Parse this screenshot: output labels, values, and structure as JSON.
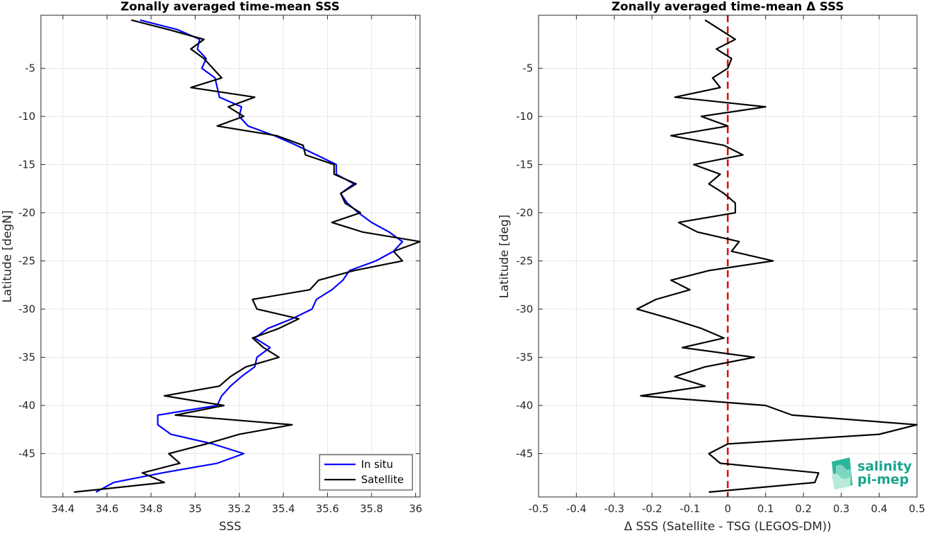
{
  "chart_data": [
    {
      "type": "line",
      "title": "Zonally averaged time-mean SSS",
      "xlabel": "SSS",
      "ylabel": "Latitude [degN]",
      "xlim": [
        34.3,
        36.02
      ],
      "ylim": [
        -49.5,
        0.5
      ],
      "xticks": [
        34.4,
        34.6,
        34.8,
        35,
        35.2,
        35.4,
        35.6,
        35.8,
        36
      ],
      "xtick_labels": [
        "34.4",
        "34.6",
        "34.8",
        "35",
        "35.2",
        "35.4",
        "35.6",
        "35.8",
        "36"
      ],
      "yticks": [
        -5,
        -10,
        -15,
        -20,
        -25,
        -30,
        -35,
        -40,
        -45
      ],
      "ytick_labels": [
        "-5",
        "-10",
        "-15",
        "-20",
        "-25",
        "-30",
        "-35",
        "-40",
        "-45"
      ],
      "grid": true,
      "legend_position": "bottom-right",
      "series": [
        {
          "name": "In situ",
          "color": "#0000ff",
          "lat": [
            0,
            -1,
            -2,
            -3,
            -4,
            -5,
            -6,
            -7,
            -8,
            -9,
            -10,
            -11,
            -12,
            -13,
            -14,
            -15,
            -16,
            -17,
            -18,
            -19,
            -20,
            -21,
            -22,
            -23,
            -24,
            -25,
            -26,
            -27,
            -28,
            -29,
            -30,
            -31,
            -32,
            -33,
            -34,
            -35,
            -36,
            -37,
            -38,
            -39,
            -40,
            -41,
            -42,
            -43,
            -44,
            -45,
            -46,
            -47,
            -48,
            -49
          ],
          "values": [
            34.75,
            34.92,
            35.02,
            35.01,
            35.05,
            35.03,
            35.09,
            35.1,
            35.11,
            35.21,
            35.2,
            35.24,
            35.36,
            35.46,
            35.55,
            35.64,
            35.64,
            35.72,
            35.66,
            35.69,
            35.74,
            35.8,
            35.88,
            35.94,
            35.9,
            35.82,
            35.7,
            35.67,
            35.62,
            35.55,
            35.53,
            35.44,
            35.33,
            35.27,
            35.34,
            35.28,
            35.27,
            35.21,
            35.16,
            35.12,
            35.1,
            34.83,
            34.83,
            34.89,
            35.08,
            35.22,
            35.1,
            34.85,
            34.63,
            34.55
          ]
        },
        {
          "name": "Satellite",
          "color": "#000000",
          "lat": [
            0,
            -1,
            -2,
            -3,
            -4,
            -5,
            -6,
            -7,
            -8,
            -9,
            -10,
            -11,
            -12,
            -13,
            -14,
            -15,
            -16,
            -17,
            -18,
            -19,
            -20,
            -21,
            -22,
            -23,
            -24,
            -25,
            -26,
            -27,
            -28,
            -29,
            -30,
            -31,
            -32,
            -33,
            -34,
            -35,
            -36,
            -37,
            -38,
            -39,
            -40,
            -41,
            -42,
            -43,
            -44,
            -45,
            -46,
            -47,
            -48,
            -49
          ],
          "values": [
            34.71,
            34.88,
            35.04,
            34.98,
            35.04,
            35.08,
            35.12,
            34.98,
            35.27,
            35.15,
            35.22,
            35.1,
            35.37,
            35.49,
            35.5,
            35.63,
            35.63,
            35.73,
            35.66,
            35.68,
            35.75,
            35.62,
            35.76,
            36.02,
            35.9,
            35.94,
            35.72,
            35.56,
            35.52,
            35.26,
            35.28,
            35.47,
            35.38,
            35.26,
            35.31,
            35.38,
            35.23,
            35.16,
            35.11,
            34.86,
            35.13,
            34.91,
            35.44,
            35.2,
            35.05,
            34.88,
            34.93,
            34.76,
            34.86,
            34.45
          ]
        }
      ]
    },
    {
      "type": "line",
      "title": "Zonally averaged time-mean Δ SSS",
      "xlabel": "Δ SSS (Satellite - TSG (LEGOS-DM))",
      "ylabel": "Latitude [deg]",
      "xlim": [
        -0.5,
        0.5
      ],
      "ylim": [
        -49.5,
        0.5
      ],
      "xticks": [
        -0.5,
        -0.4,
        -0.3,
        -0.2,
        -0.1,
        0,
        0.1,
        0.2,
        0.3,
        0.4,
        0.5
      ],
      "xtick_labels": [
        "-0.5",
        "-0.4",
        "-0.3",
        "-0.2",
        "-0.1",
        "0",
        "0.1",
        "0.2",
        "0.3",
        "0.4",
        "0.5"
      ],
      "yticks": [
        -5,
        -10,
        -15,
        -20,
        -25,
        -30,
        -35,
        -40,
        -45
      ],
      "ytick_labels": [
        "-5",
        "-10",
        "-15",
        "-20",
        "-25",
        "-30",
        "-35",
        "-40",
        "-45"
      ],
      "grid": true,
      "zero_line_color": "#e00000",
      "series": [
        {
          "name": "",
          "color": "#000000",
          "lat": [
            0,
            -1,
            -2,
            -3,
            -4,
            -5,
            -6,
            -7,
            -8,
            -9,
            -10,
            -11,
            -12,
            -13,
            -14,
            -15,
            -16,
            -17,
            -18,
            -19,
            -20,
            -21,
            -22,
            -23,
            -24,
            -25,
            -26,
            -27,
            -28,
            -29,
            -30,
            -31,
            -32,
            -33,
            -34,
            -35,
            -36,
            -37,
            -38,
            -39,
            -40,
            -41,
            -42,
            -43,
            -44,
            -45,
            -46,
            -47,
            -48,
            -49
          ],
          "values": [
            -0.06,
            -0.02,
            0.02,
            -0.03,
            0.01,
            0.0,
            -0.04,
            -0.02,
            -0.14,
            0.1,
            -0.07,
            0.0,
            -0.15,
            -0.01,
            0.04,
            -0.09,
            -0.02,
            -0.05,
            -0.01,
            0.02,
            0.02,
            -0.13,
            -0.08,
            0.03,
            0.01,
            0.12,
            -0.05,
            -0.15,
            -0.1,
            -0.19,
            -0.24,
            -0.15,
            -0.07,
            -0.01,
            -0.12,
            0.07,
            -0.06,
            -0.14,
            -0.06,
            -0.23,
            0.1,
            0.17,
            0.5,
            0.4,
            0.0,
            -0.05,
            -0.02,
            0.24,
            0.23,
            -0.05
          ]
        }
      ]
    }
  ],
  "legend": {
    "items": [
      {
        "label": "In situ",
        "color": "#0000ff"
      },
      {
        "label": "Satellite",
        "color": "#000000"
      }
    ]
  },
  "logo": {
    "line1": "salinity",
    "line2": "pi-mep",
    "icon_name": "salinity-pi-mep-logo-icon"
  }
}
